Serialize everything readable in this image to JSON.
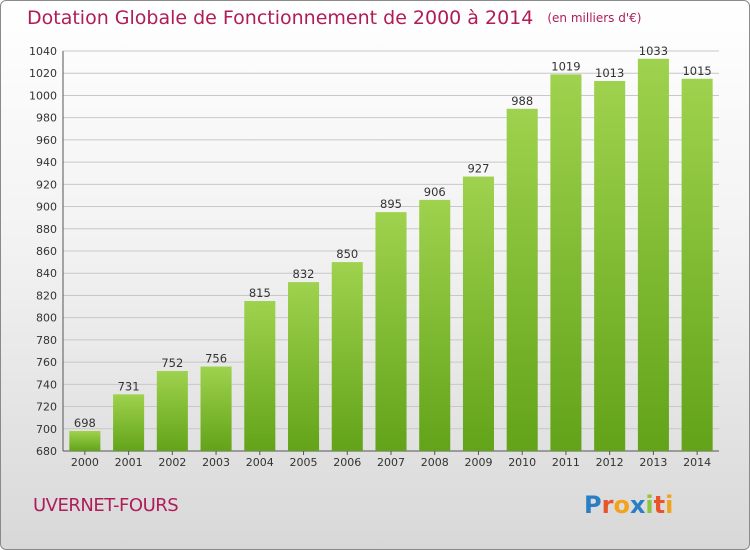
{
  "title": "Dotation Globale de Fonctionnement de 2000 à 2014",
  "unit": "(en milliers d'€)",
  "commune": "UVERNET-FOURS",
  "logo": {
    "text": "Proxiti",
    "letters": [
      {
        "ch": "P",
        "color": "#2a7fc4"
      },
      {
        "ch": "r",
        "color": "#e8552a"
      },
      {
        "ch": "o",
        "color": "#f2a31c"
      },
      {
        "ch": "x",
        "color": "#2a7fc4"
      },
      {
        "ch": "i",
        "color": "#8cc43c"
      },
      {
        "ch": "t",
        "color": "#e8552a"
      },
      {
        "ch": "i",
        "color": "#f2a31c"
      }
    ]
  },
  "colors": {
    "title": "#b01c58",
    "bar_light": "#9fd24e",
    "bar_dark": "#62a319",
    "grid": "#c8c8c8"
  },
  "chart_data": {
    "type": "bar",
    "title": "Dotation Globale de Fonctionnement de 2000 à 2014",
    "subtitle": "(en milliers d'€)",
    "categories": [
      "2000",
      "2001",
      "2002",
      "2003",
      "2004",
      "2005",
      "2006",
      "2007",
      "2008",
      "2009",
      "2010",
      "2011",
      "2012",
      "2013",
      "2014"
    ],
    "values": [
      698,
      731,
      752,
      756,
      815,
      832,
      850,
      895,
      906,
      927,
      988,
      1019,
      1013,
      1033,
      1015
    ],
    "ylim": [
      680,
      1040
    ],
    "yticks": [
      680,
      700,
      720,
      740,
      760,
      780,
      800,
      820,
      840,
      860,
      880,
      900,
      920,
      940,
      960,
      980,
      1000,
      1020,
      1040
    ],
    "grid": true,
    "xlabel": "",
    "ylabel": ""
  }
}
